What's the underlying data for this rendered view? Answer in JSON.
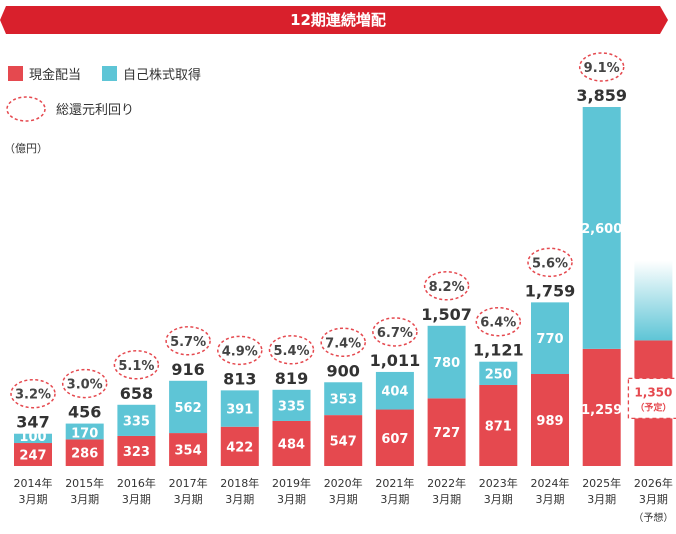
{
  "chart_data": {
    "type": "bar",
    "title": "12期連続増配",
    "unit": "（億円）",
    "stacked": true,
    "legend": [
      {
        "name": "現金配当",
        "color": "#e5494f",
        "marker": "square"
      },
      {
        "name": "自己株式取得",
        "color": "#5ec5d6",
        "marker": "square"
      },
      {
        "name": "総還元利回り",
        "color": "#e5494f",
        "marker": "dashed-circle"
      }
    ],
    "categories": [
      {
        "year": "2014年",
        "month": "3月期"
      },
      {
        "year": "2015年",
        "month": "3月期"
      },
      {
        "year": "2016年",
        "month": "3月期"
      },
      {
        "year": "2017年",
        "month": "3月期"
      },
      {
        "year": "2018年",
        "month": "3月期"
      },
      {
        "year": "2019年",
        "month": "3月期"
      },
      {
        "year": "2020年",
        "month": "3月期"
      },
      {
        "year": "2021年",
        "month": "3月期"
      },
      {
        "year": "2022年",
        "month": "3月期"
      },
      {
        "year": "2023年",
        "month": "3月期"
      },
      {
        "year": "2024年",
        "month": "3月期"
      },
      {
        "year": "2025年",
        "month": "3月期"
      },
      {
        "year": "2026年",
        "month": "3月期",
        "note": "（予想）"
      }
    ],
    "series": [
      {
        "name": "現金配当",
        "values": [
          247,
          286,
          323,
          354,
          422,
          484,
          547,
          607,
          727,
          871,
          989,
          1259,
          1350
        ],
        "labels": [
          "247",
          "286",
          "323",
          "354",
          "422",
          "484",
          "547",
          "607",
          "727",
          "871",
          "989",
          "1,259",
          "1,350"
        ]
      },
      {
        "name": "自己株式取得",
        "values": [
          100,
          170,
          335,
          562,
          391,
          335,
          353,
          404,
          780,
          250,
          770,
          2600,
          null
        ],
        "labels": [
          "100",
          "170",
          "335",
          "562",
          "391",
          "335",
          "353",
          "404",
          "780",
          "250",
          "770",
          "2,600",
          ""
        ]
      }
    ],
    "totals": [
      "347",
      "456",
      "658",
      "916",
      "813",
      "819",
      "900",
      "1,011",
      "1,507",
      "1,121",
      "1,759",
      "3,859",
      ""
    ],
    "yields": [
      "3.2",
      "3.0",
      "5.1",
      "5.7",
      "4.9",
      "5.4",
      "7.4",
      "6.7",
      "8.2",
      "6.4",
      "5.6",
      "9.1",
      ""
    ],
    "yield_suffix": "%",
    "forecast": {
      "value": 1350,
      "label": "1,350",
      "sublabel": "（予定）",
      "buyback_faded": true
    },
    "ylim": [
      0,
      4200
    ]
  }
}
